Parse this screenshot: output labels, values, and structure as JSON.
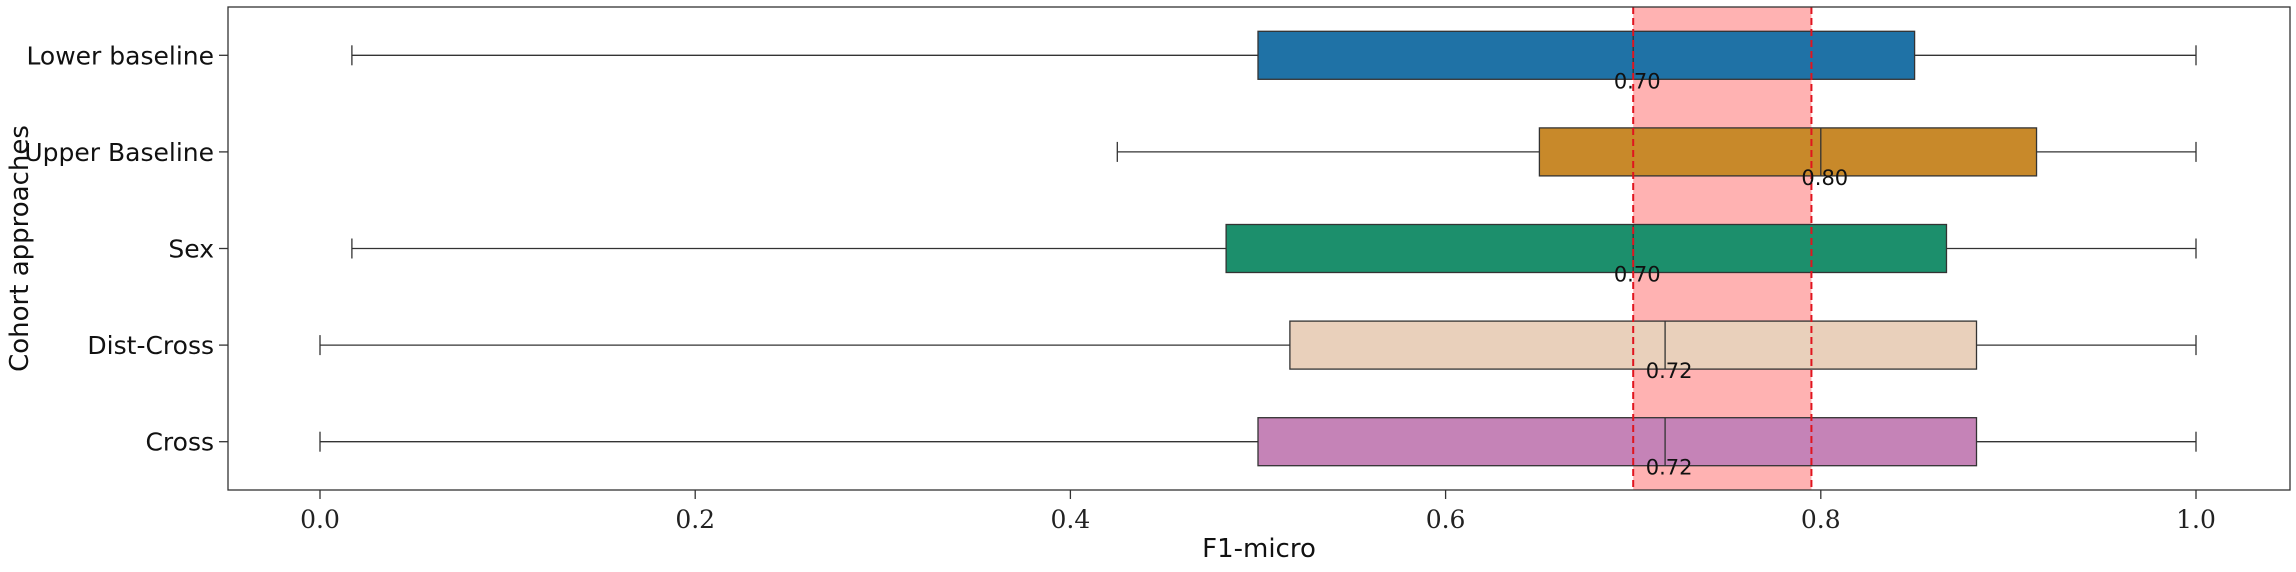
{
  "chart_data": {
    "type": "box",
    "xlabel": "F1-micro",
    "ylabel": "Cohort approaches",
    "xlim": [
      -0.05,
      1.05
    ],
    "xticks": [
      0.0,
      0.2,
      0.4,
      0.6,
      0.8,
      1.0
    ],
    "xtick_labels": [
      "0.0",
      "0.2",
      "0.4",
      "0.6",
      "0.8",
      "1.0"
    ],
    "grid": false,
    "highlight_band": {
      "from": 0.7,
      "to": 0.795,
      "color": "#ff7f7f",
      "line_color": "#e0141e",
      "line_style": "dashed"
    },
    "series": [
      {
        "name": "Lower baseline",
        "whisker_low": 0.017,
        "q1": 0.5,
        "median": 0.7,
        "q3": 0.85,
        "whisker_high": 1.0,
        "median_label": "0.70",
        "color": "#1f72a6"
      },
      {
        "name": "Upper Baseline",
        "whisker_low": 0.425,
        "q1": 0.65,
        "median": 0.8,
        "q3": 0.915,
        "whisker_high": 1.0,
        "median_label": "0.80",
        "color": "#c8892a"
      },
      {
        "name": "Sex",
        "whisker_low": 0.017,
        "q1": 0.483,
        "median": 0.7,
        "q3": 0.867,
        "whisker_high": 1.0,
        "median_label": "0.70",
        "color": "#1c8f6c"
      },
      {
        "name": "Dist-Cross",
        "whisker_low": 0.0,
        "q1": 0.517,
        "median": 0.717,
        "q3": 0.883,
        "whisker_high": 1.0,
        "median_label": "0.72",
        "color": "#e9d0bb"
      },
      {
        "name": "Cross",
        "whisker_low": 0.0,
        "q1": 0.5,
        "median": 0.717,
        "q3": 0.883,
        "whisker_high": 1.0,
        "median_label": "0.72",
        "color": "#c583b7"
      }
    ]
  }
}
